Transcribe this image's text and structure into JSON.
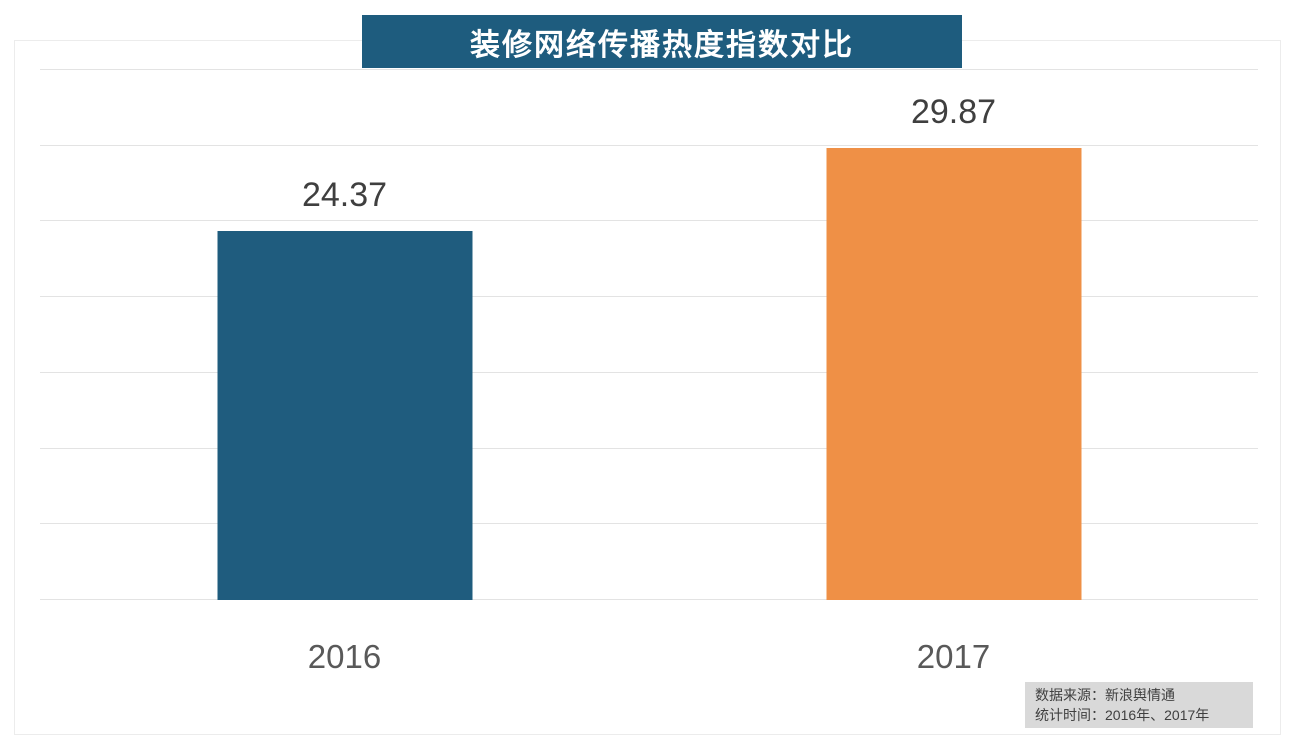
{
  "title": "装修网络传播热度指数对比",
  "chart_data": {
    "type": "bar",
    "title": "装修网络传播热度指数对比",
    "categories": [
      "2016",
      "2017"
    ],
    "values": [
      24.37,
      29.87
    ],
    "value_labels": [
      "24.37",
      "29.87"
    ],
    "bar_colors": [
      "#1F5C7E",
      "#EF9046"
    ],
    "xlabel": "",
    "ylabel": "",
    "ylim": [
      0,
      35
    ],
    "gridline_step": 5,
    "grid": true,
    "legend_position": "none"
  },
  "footer": {
    "source_line": "数据来源：新浪舆情通",
    "period_line": "统计时间：2016年、2017年"
  },
  "colors": {
    "title_bg": "#1E5C7E",
    "title_text": "#FFFFFF",
    "gridline": "#E3E3E3",
    "value_label": "#3F3F3F",
    "category_label": "#595959",
    "footer_bg": "#D9D9D9",
    "footer_text": "#3F3F3F"
  }
}
